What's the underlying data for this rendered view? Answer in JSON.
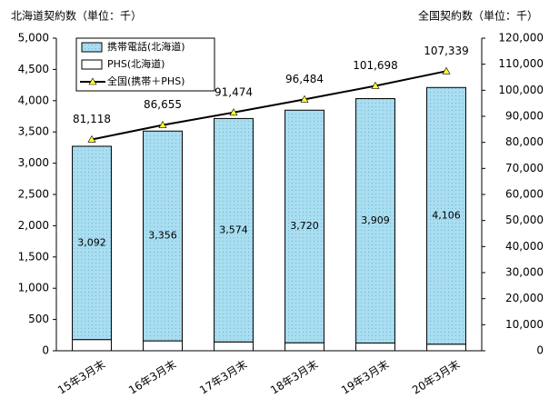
{
  "chart_data": {
    "type": "bar",
    "stacked": true,
    "ylabel": "北海道契約数（単位：千）",
    "y2label": "全国契約数（単位：千）",
    "categories": [
      "15年3月末",
      "16年3月末",
      "17年3月末",
      "18年3月末",
      "19年3月末",
      "20年3月末"
    ],
    "series": [
      {
        "name": "PHS(北海道)",
        "type": "bar",
        "color": "#ffffff",
        "values": [
          179,
          158,
          141,
          128,
          124,
          105
        ]
      },
      {
        "name": "携帯電話(北海道)",
        "type": "bar",
        "color": "#a9ddf0",
        "values": [
          3092,
          3356,
          3574,
          3720,
          3909,
          4106
        ],
        "value_labels": [
          "3,092",
          "3,356",
          "3,574",
          "3,720",
          "3,909",
          "4,106"
        ]
      },
      {
        "name": "全国(携帯＋PHS)",
        "type": "line",
        "axis": "y2",
        "color": "#000000",
        "marker_color": "#ffff33",
        "values": [
          81118,
          86655,
          91474,
          96484,
          101698,
          107339
        ],
        "value_labels": [
          "81,118",
          "86,655",
          "91,474",
          "96,484",
          "101,698",
          "107,339"
        ]
      }
    ],
    "legend_order": [
      1,
      0,
      2
    ],
    "ylim": [
      0,
      5000
    ],
    "yticks": [
      0,
      500,
      {
        "value": 1000,
        "label": "1,000"
      },
      {
        "value": 1500,
        "label": "1,500"
      },
      {
        "value": 2000,
        "label": "2,000"
      },
      {
        "value": 2500,
        "label": "2,500"
      },
      {
        "value": 3000,
        "label": "3,000"
      },
      {
        "value": 3500,
        "label": "3,500"
      },
      {
        "value": 4000,
        "label": "4,000"
      },
      {
        "value": 4500,
        "label": "4,500"
      },
      {
        "value": 5000,
        "label": "5,000"
      }
    ],
    "y2lim": [
      0,
      120000
    ],
    "y2ticks": [
      0,
      {
        "value": 10000,
        "label": "10,000"
      },
      {
        "value": 20000,
        "label": "20,000"
      },
      {
        "value": 30000,
        "label": "30,000"
      },
      {
        "value": 40000,
        "label": "40,000"
      },
      {
        "value": 50000,
        "label": "50,000"
      },
      {
        "value": 60000,
        "label": "60,000"
      },
      {
        "value": 70000,
        "label": "70,000"
      },
      {
        "value": 80000,
        "label": "80,000"
      },
      {
        "value": 90000,
        "label": "90,000"
      },
      {
        "value": 100000,
        "label": "100,000"
      },
      {
        "value": 110000,
        "label": "110,000"
      },
      {
        "value": 120000,
        "label": "120,000"
      }
    ]
  }
}
